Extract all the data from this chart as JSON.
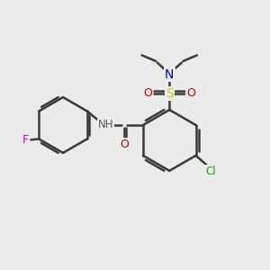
{
  "bg_color": "#ebebeb",
  "bond_color": "#3a3a3a",
  "bond_width": 1.8,
  "atom_colors": {
    "N": "#0000cc",
    "O": "#cc0000",
    "S": "#cccc00",
    "Cl": "#00aa00",
    "F": "#cc00cc",
    "NH": "#506050",
    "H": "#506050"
  },
  "xlim": [
    0,
    10
  ],
  "ylim": [
    0,
    10
  ]
}
